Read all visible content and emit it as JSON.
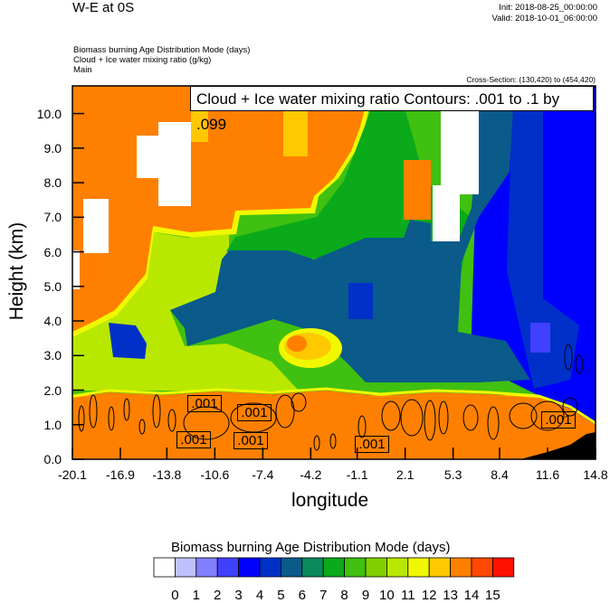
{
  "header": {
    "title": "W-E at 0S",
    "init": "Init: 2018-08-25_00:00:00",
    "valid": "Valid: 2018-10-01_06:00:00",
    "fields": [
      "Biomass burning Age Distribution Mode    (days)",
      "Cloud + Ice water mixing ratio    (g/kg)",
      "Main"
    ],
    "cross_section": "Cross-Section: (130,420) to (454,420)"
  },
  "chart_data": {
    "type": "heatmap",
    "title": "W-E at 0S",
    "xlabel": "longitude",
    "ylabel": "Height (km)",
    "xlim": [
      -20.1,
      14.8
    ],
    "ylim": [
      0,
      10.8
    ],
    "xticks": [
      "-20.1",
      "-16.9",
      "-13.8",
      "-10.6",
      "-7.4",
      "-4.2",
      "-1.1",
      "2.1",
      "5.3",
      "8.4",
      "11.6",
      "14.8"
    ],
    "yticks": [
      "0.0",
      "1.0",
      "2.0",
      "3.0",
      "4.0",
      "5.0",
      "6.0",
      "7.0",
      "8.0",
      "9.0",
      "10.0"
    ],
    "contour_title": "Cloud + Ice water mixing ratio Contours: .001 to .1 by .099",
    "contour_labels": [
      ".001",
      ".001",
      ".001",
      ".001",
      ".001",
      ".001"
    ],
    "colorbar": {
      "title": "Biomass burning Age Distribution Mode  (days)",
      "labels": [
        "0",
        "1",
        "2",
        "3",
        "4",
        "5",
        "6",
        "7",
        "8",
        "9",
        "10",
        "11",
        "12",
        "13",
        "14",
        "15"
      ],
      "colors": [
        "#ffffff",
        "#c0c0ff",
        "#8080ff",
        "#4040ff",
        "#0000ff",
        "#0030c8",
        "#0a5a8a",
        "#0a8a5a",
        "#0aaa1a",
        "#40c010",
        "#80d000",
        "#b8e800",
        "#f0f800",
        "#ffc800",
        "#ff8000",
        "#ff4800",
        "#ff1000"
      ]
    },
    "description_note_values": {
      "boundary_layer_age_days": 14,
      "mid_troposphere_west_age_days": 14,
      "mid_troposphere_central_age_days": 6,
      "east_age_days": 4
    }
  }
}
